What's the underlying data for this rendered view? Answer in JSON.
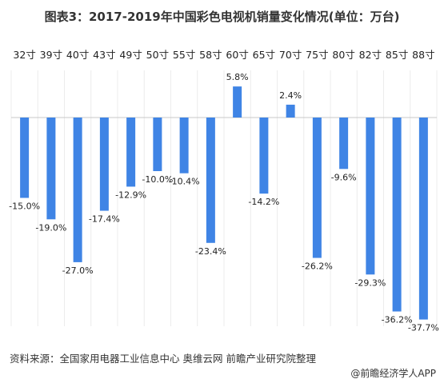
{
  "title": "图表3：2017-2019年中国彩色电视机销量变化情况(单位：万台)",
  "chart_data": {
    "type": "bar",
    "categories": [
      "32寸",
      "39寸",
      "40寸",
      "43寸",
      "49寸",
      "50寸",
      "55寸",
      "58寸",
      "60寸",
      "65寸",
      "70寸",
      "75寸",
      "80寸",
      "82寸",
      "85寸",
      "88寸"
    ],
    "values": [
      -15.0,
      -19.0,
      -27.0,
      -17.4,
      -12.9,
      -10.0,
      -10.4,
      -23.4,
      5.8,
      -14.2,
      2.4,
      -26.2,
      -9.6,
      -29.3,
      -36.2,
      -37.7
    ],
    "data_labels": [
      "-15.0%",
      "-19.0%",
      "-27.0%",
      "-17.4%",
      "-12.9%",
      "-10.0%",
      "-10.4%",
      "-23.4%",
      "5.8%",
      "-14.2%",
      "2.4%",
      "-26.2%",
      "-9.6%",
      "-29.3%",
      "-36.2%",
      "-37.7%"
    ],
    "bar_color": "#3f84e5",
    "grid": false
  },
  "footer": {
    "source": "资料来源：全国家用电器工业信息中心 奥维云网 前瞻产业研究院整理",
    "brand": "@前瞻经济学人APP"
  }
}
